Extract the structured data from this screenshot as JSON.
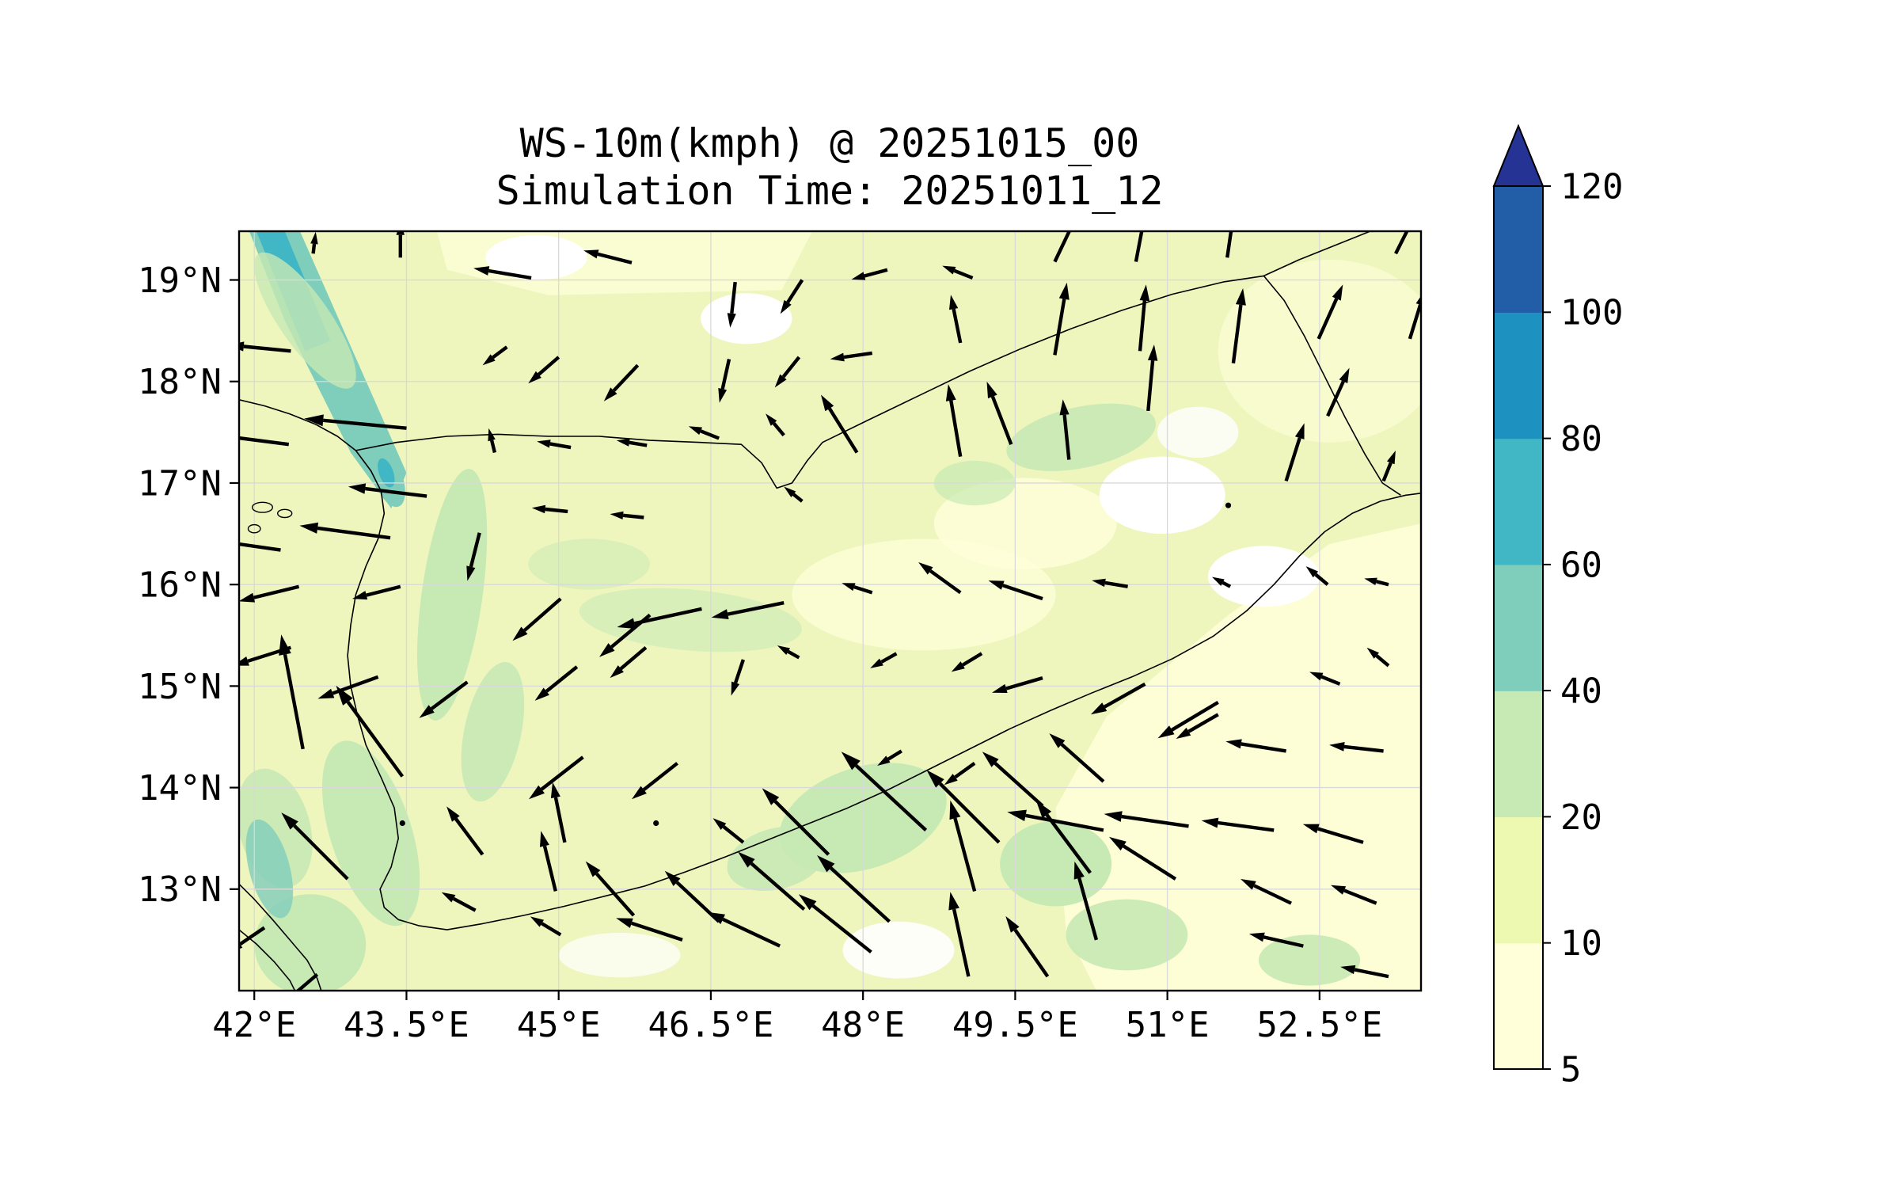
{
  "figure": {
    "kind": "weather-quiver-map"
  },
  "chart_data": {
    "type": "quiver-map",
    "title": "WS-10m(kmph) @ 20251015_00",
    "subtitle": "Simulation Time: 20251011_12",
    "variable": "WS-10m",
    "units": "kmph",
    "valid_time": "20251015_00",
    "simulation_time": "20251011_12",
    "lon_range": [
      41.85,
      53.5
    ],
    "lat_range": [
      12.0,
      19.48
    ],
    "x_tick_values": [
      42,
      43.5,
      45,
      46.5,
      48,
      49.5,
      51,
      52.5
    ],
    "x_tick_labels": [
      "42°E",
      "43.5°E",
      "45°E",
      "46.5°E",
      "48°E",
      "49.5°E",
      "51°E",
      "52.5°E"
    ],
    "y_tick_values": [
      13,
      14,
      15,
      16,
      17,
      18,
      19
    ],
    "y_tick_labels": [
      "13°N",
      "14°N",
      "15°N",
      "16°N",
      "17°N",
      "18°N",
      "19°N"
    ],
    "grid": true,
    "colorbar": {
      "levels": [
        5,
        10,
        20,
        40,
        60,
        80,
        100,
        120
      ],
      "tick_labels": [
        "5",
        "10",
        "20",
        "40",
        "60",
        "80",
        "100",
        "120"
      ],
      "segment_colors": [
        "#ffffd9",
        "#edf8b1",
        "#c7e9b4",
        "#7fcdbb",
        "#41b6c4",
        "#1d91c0",
        "#225ea8"
      ],
      "over_color": "#253494",
      "extend": "max"
    },
    "base_fill_color": "#eef6be",
    "arrow_units": "kmph",
    "arrows": [
      [
        42.58,
        19.26,
        0.5,
        4.3
      ],
      [
        43.44,
        19.22,
        0.0,
        7.1
      ],
      [
        44.73,
        19.02,
        -11.4,
        1.9
      ],
      [
        45.72,
        19.17,
        -9.5,
        2.4
      ],
      [
        46.74,
        18.98,
        -1.0,
        -9.0
      ],
      [
        47.4,
        19.0,
        -4.3,
        -6.7
      ],
      [
        48.24,
        19.1,
        -7.1,
        -1.9
      ],
      [
        49.08,
        19.02,
        -6.0,
        2.4
      ],
      [
        49.89,
        19.18,
        4.3,
        9.0
      ],
      [
        50.69,
        19.18,
        1.9,
        10.0
      ],
      [
        51.59,
        19.22,
        1.2,
        8.3
      ],
      [
        53.25,
        19.26,
        3.6,
        7.1
      ],
      [
        42.36,
        18.3,
        -12.4,
        1.2
      ],
      [
        44.49,
        18.34,
        -4.8,
        -3.6
      ],
      [
        45.0,
        18.24,
        -6.0,
        -5.2
      ],
      [
        45.78,
        18.16,
        -6.7,
        -7.1
      ],
      [
        46.68,
        18.22,
        -1.9,
        -8.6
      ],
      [
        47.37,
        18.24,
        -4.8,
        -6.0
      ],
      [
        48.09,
        18.28,
        -8.3,
        -1.2
      ],
      [
        48.96,
        18.38,
        -1.9,
        9.5
      ],
      [
        49.89,
        18.26,
        2.4,
        14.3
      ],
      [
        50.73,
        18.3,
        1.2,
        13.1
      ],
      [
        51.65,
        18.18,
        1.9,
        14.8
      ],
      [
        52.49,
        18.42,
        4.8,
        10.7
      ],
      [
        53.39,
        18.42,
        2.9,
        9.5
      ],
      [
        42.34,
        17.38,
        -22.6,
        2.9
      ],
      [
        43.5,
        17.54,
        -20.2,
        1.9
      ],
      [
        44.37,
        17.3,
        -1.2,
        4.8
      ],
      [
        45.12,
        17.35,
        -6.7,
        1.2
      ],
      [
        45.87,
        17.37,
        -6.0,
        1.0
      ],
      [
        46.58,
        17.44,
        -6.0,
        2.4
      ],
      [
        47.22,
        17.47,
        -3.6,
        4.3
      ],
      [
        47.94,
        17.3,
        -7.1,
        11.4
      ],
      [
        48.96,
        17.26,
        -2.4,
        14.3
      ],
      [
        49.46,
        17.38,
        -4.8,
        12.4
      ],
      [
        50.03,
        17.23,
        -1.2,
        11.9
      ],
      [
        50.81,
        17.71,
        1.2,
        13.1
      ],
      [
        52.17,
        17.02,
        3.6,
        11.4
      ],
      [
        52.58,
        17.66,
        4.3,
        9.5
      ],
      [
        53.13,
        17.02,
        2.4,
        6.0
      ],
      [
        43.7,
        16.87,
        -15.5,
        1.9
      ],
      [
        44.22,
        16.51,
        -2.4,
        -9.5
      ],
      [
        45.09,
        16.72,
        -7.1,
        0.7
      ],
      [
        45.84,
        16.66,
        -6.7,
        0.7
      ],
      [
        47.4,
        16.82,
        -3.6,
        2.9
      ],
      [
        51.6,
        16.78,
        0.0,
        0.0
      ],
      [
        42.26,
        16.34,
        -25.0,
        3.6
      ],
      [
        43.34,
        16.46,
        -17.9,
        2.4
      ],
      [
        42.44,
        15.98,
        -11.9,
        -2.9
      ],
      [
        43.44,
        15.98,
        -9.5,
        -2.4
      ],
      [
        45.02,
        15.86,
        -9.5,
        -8.3
      ],
      [
        45.9,
        15.7,
        -10.0,
        -8.3
      ],
      [
        46.41,
        15.76,
        -16.7,
        -3.6
      ],
      [
        47.22,
        15.82,
        -14.3,
        -2.9
      ],
      [
        48.09,
        15.92,
        -6.0,
        1.9
      ],
      [
        48.96,
        15.92,
        -8.3,
        6.0
      ],
      [
        49.77,
        15.86,
        -10.7,
        3.6
      ],
      [
        50.61,
        15.98,
        -7.1,
        1.2
      ],
      [
        51.62,
        15.98,
        -3.6,
        1.9
      ],
      [
        52.58,
        16.0,
        -4.3,
        3.6
      ],
      [
        53.18,
        16.0,
        -4.8,
        1.2
      ],
      [
        42.36,
        15.38,
        -11.4,
        -3.6
      ],
      [
        43.22,
        15.09,
        -11.9,
        -4.3
      ],
      [
        44.1,
        15.04,
        -9.5,
        -7.1
      ],
      [
        45.18,
        15.19,
        -8.3,
        -6.7
      ],
      [
        45.86,
        15.38,
        -7.1,
        -6.0
      ],
      [
        46.82,
        15.26,
        -2.4,
        -7.1
      ],
      [
        47.37,
        15.28,
        -4.3,
        2.4
      ],
      [
        48.33,
        15.32,
        -5.2,
        -2.9
      ],
      [
        49.17,
        15.32,
        -6.0,
        -3.6
      ],
      [
        49.77,
        15.08,
        -10.0,
        -2.9
      ],
      [
        50.78,
        15.02,
        -10.7,
        -6.0
      ],
      [
        51.5,
        14.84,
        -11.9,
        -7.1
      ],
      [
        52.7,
        15.02,
        -6.0,
        2.4
      ],
      [
        53.18,
        15.2,
        -4.3,
        3.6
      ],
      [
        42.48,
        14.38,
        -4.3,
        22.6
      ],
      [
        43.46,
        14.11,
        -13.1,
        17.9
      ],
      [
        45.24,
        14.3,
        -10.7,
        -8.3
      ],
      [
        46.17,
        14.24,
        -9.0,
        -7.1
      ],
      [
        48.38,
        14.36,
        -4.8,
        -2.9
      ],
      [
        49.1,
        14.24,
        -6.0,
        -4.3
      ],
      [
        49.77,
        13.82,
        -11.9,
        10.7
      ],
      [
        50.37,
        14.06,
        -10.7,
        9.5
      ],
      [
        51.5,
        14.72,
        -8.3,
        -4.8
      ],
      [
        52.17,
        14.36,
        -11.9,
        1.9
      ],
      [
        53.13,
        14.36,
        -10.7,
        1.2
      ],
      [
        43.46,
        13.65,
        0.0,
        0.0
      ],
      [
        45.96,
        13.65,
        0.0,
        0.0
      ],
      [
        44.25,
        13.34,
        -7.1,
        9.5
      ],
      [
        45.06,
        13.46,
        -2.4,
        11.9
      ],
      [
        46.82,
        13.46,
        -6.0,
        4.8
      ],
      [
        47.66,
        13.34,
        -13.1,
        13.1
      ],
      [
        48.62,
        13.58,
        -16.7,
        15.5
      ],
      [
        49.34,
        13.46,
        -14.3,
        14.3
      ],
      [
        50.37,
        13.58,
        -19.0,
        3.6
      ],
      [
        51.21,
        13.62,
        -16.7,
        2.4
      ],
      [
        52.05,
        13.58,
        -14.3,
        1.9
      ],
      [
        52.93,
        13.46,
        -11.9,
        3.6
      ],
      [
        42.92,
        13.1,
        -13.1,
        13.1
      ],
      [
        44.18,
        12.79,
        -6.7,
        3.6
      ],
      [
        44.97,
        12.98,
        -2.9,
        11.9
      ],
      [
        45.74,
        12.74,
        -9.5,
        10.7
      ],
      [
        46.58,
        12.68,
        -10.7,
        10.0
      ],
      [
        47.42,
        12.8,
        -13.1,
        11.4
      ],
      [
        48.26,
        12.68,
        -14.3,
        13.1
      ],
      [
        49.1,
        12.98,
        -4.8,
        17.9
      ],
      [
        50.24,
        13.16,
        -10.7,
        14.3
      ],
      [
        51.08,
        13.1,
        -13.1,
        8.3
      ],
      [
        52.22,
        12.86,
        -10.0,
        4.8
      ],
      [
        53.06,
        12.86,
        -9.0,
        3.6
      ],
      [
        42.1,
        12.62,
        -7.1,
        -4.8
      ],
      [
        42.62,
        12.16,
        -8.3,
        -7.1
      ],
      [
        45.02,
        12.55,
        -6.0,
        3.6
      ],
      [
        46.22,
        12.5,
        -13.1,
        4.3
      ],
      [
        47.18,
        12.44,
        -14.3,
        6.7
      ],
      [
        48.08,
        12.38,
        -14.3,
        11.4
      ],
      [
        49.04,
        12.14,
        -3.6,
        16.7
      ],
      [
        49.82,
        12.14,
        -8.3,
        11.9
      ],
      [
        50.3,
        12.5,
        -4.3,
        15.5
      ],
      [
        52.34,
        12.44,
        -10.7,
        2.4
      ],
      [
        53.18,
        12.14,
        -9.5,
        1.9
      ]
    ]
  }
}
